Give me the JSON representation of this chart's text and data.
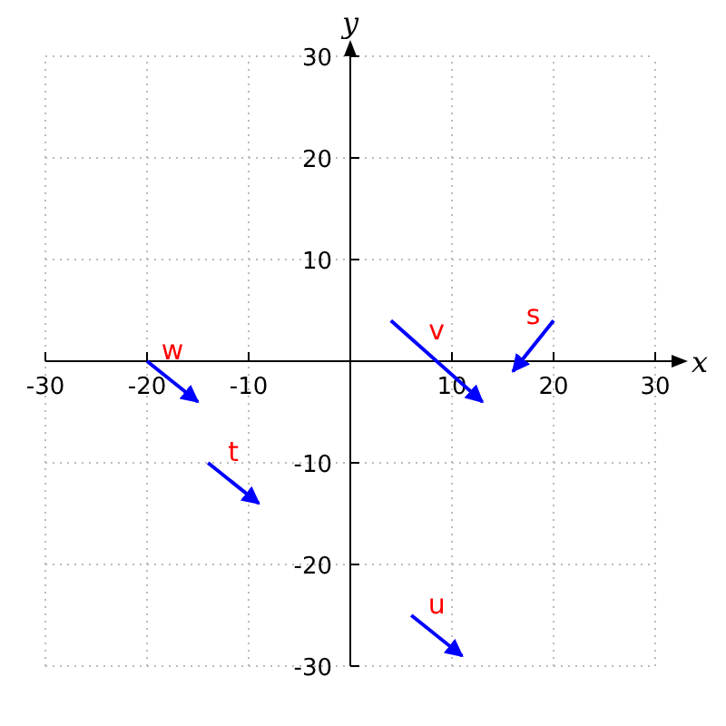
{
  "chart_data": {
    "type": "line",
    "xlabel": "x",
    "ylabel": "y",
    "xlim": [
      -30,
      30
    ],
    "ylim": [
      -30,
      30
    ],
    "xticks": [
      -30,
      -20,
      -10,
      10,
      20,
      30
    ],
    "yticks": [
      -30,
      -20,
      -10,
      10,
      20,
      30
    ],
    "grid": true,
    "line_style": "solid",
    "series": [
      {
        "name": "s",
        "color": "#0000ff",
        "x": [
          20,
          16
        ],
        "values": [
          4,
          -1
        ]
      },
      {
        "name": "t",
        "color": "#0000ff",
        "x": [
          -14,
          -9
        ],
        "values": [
          -10,
          -14
        ]
      },
      {
        "name": "u",
        "color": "#0000ff",
        "x": [
          6,
          11
        ],
        "values": [
          -25,
          -29
        ]
      },
      {
        "name": "v",
        "color": "#0000ff",
        "x": [
          4,
          13
        ],
        "values": [
          4,
          -4
        ]
      },
      {
        "name": "w",
        "color": "#0000ff",
        "x": [
          -20,
          -15
        ],
        "values": [
          0,
          -4
        ]
      }
    ]
  }
}
